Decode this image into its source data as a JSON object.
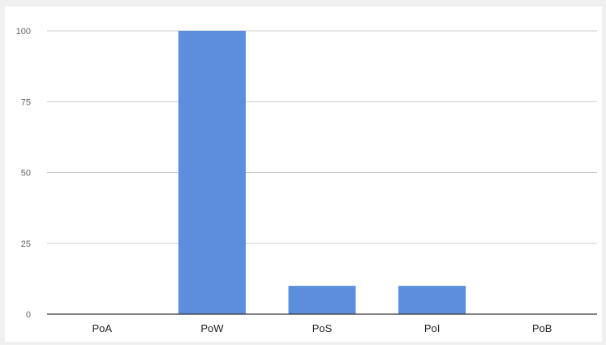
{
  "chart_data": {
    "type": "bar",
    "title": "",
    "xlabel": "",
    "ylabel": "",
    "categories": [
      "PoA",
      "PoW",
      "PoS",
      "PoI",
      "PoB"
    ],
    "values": [
      0,
      100,
      10,
      10,
      0
    ],
    "ylim": [
      0,
      100
    ],
    "yticks": [
      0,
      25,
      50,
      75,
      100
    ],
    "grid": true,
    "legend": "none",
    "bar_color": "#5b8fdd",
    "grid_color": "#cccccc",
    "axis_color": "#333333"
  }
}
